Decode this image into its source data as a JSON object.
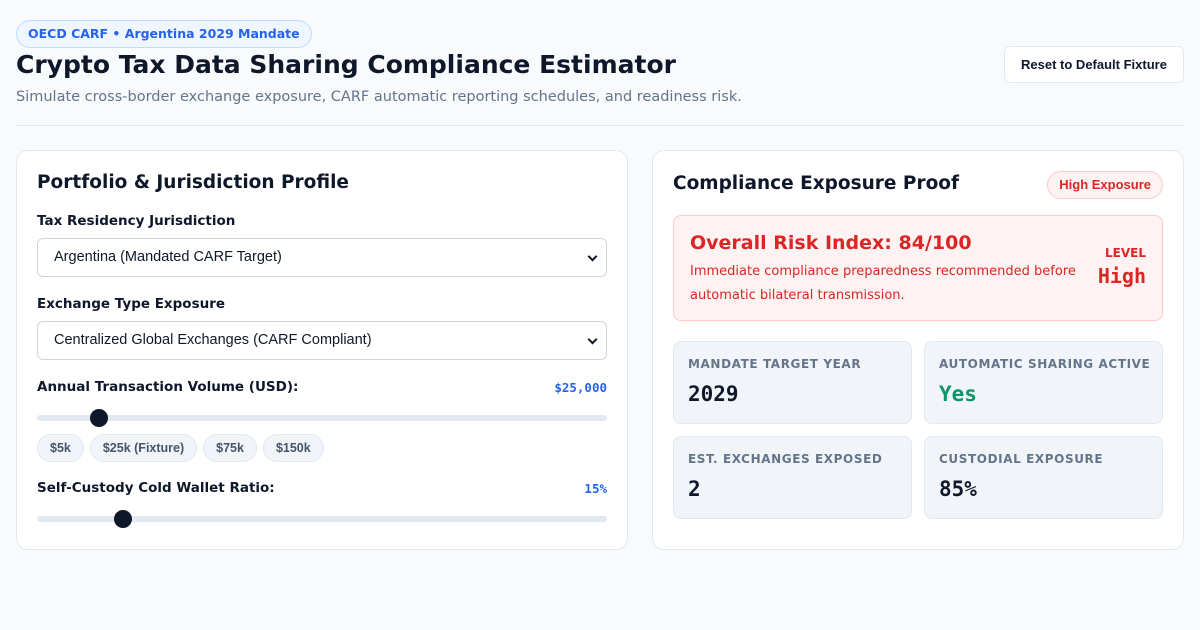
{
  "header": {
    "pill": "OECD CARF • Argentina 2029 Mandate",
    "title": "Crypto Tax Data Sharing Compliance Estimator",
    "subtitle": "Simulate cross-border exchange exposure, CARF automatic reporting schedules, and readiness risk.",
    "reset_label": "Reset to Default Fixture"
  },
  "profile": {
    "title": "Portfolio & Jurisdiction Profile",
    "residency": {
      "label": "Tax Residency Jurisdiction",
      "selected": "Argentina (Mandated CARF Target)"
    },
    "exchange": {
      "label": "Exchange Type Exposure",
      "selected": "Centralized Global Exchanges (CARF Compliant)"
    },
    "volume": {
      "label": "Annual Transaction Volume (USD):",
      "value": "$25,000",
      "slider_fraction": 0.109,
      "presets": [
        "$5k",
        "$25k (Fixture)",
        "$75k",
        "$150k"
      ]
    },
    "custody": {
      "label": "Self-Custody Cold Wallet Ratio:",
      "value": "15%",
      "slider_fraction": 0.15
    }
  },
  "proof": {
    "title": "Compliance Exposure Proof",
    "badge": "High Exposure",
    "risk": {
      "title": "Overall Risk Index: 84/100",
      "description": "Immediate compliance preparedness recommended before automatic bilateral transmission.",
      "level_label": "LEVEL",
      "level_value": "High"
    },
    "stats": [
      {
        "label": "MANDATE TARGET YEAR",
        "value": "2029"
      },
      {
        "label": "AUTOMATIC SHARING ACTIVE",
        "value": "Yes"
      },
      {
        "label": "EST. EXCHANGES EXPOSED",
        "value": "2"
      },
      {
        "label": "CUSTODIAL EXPOSURE",
        "value": "85%"
      }
    ]
  },
  "colors": {
    "accent": "#2563eb",
    "danger": "#dc2626",
    "success": "#059669",
    "text": "#0f172a",
    "muted": "#64748b"
  }
}
